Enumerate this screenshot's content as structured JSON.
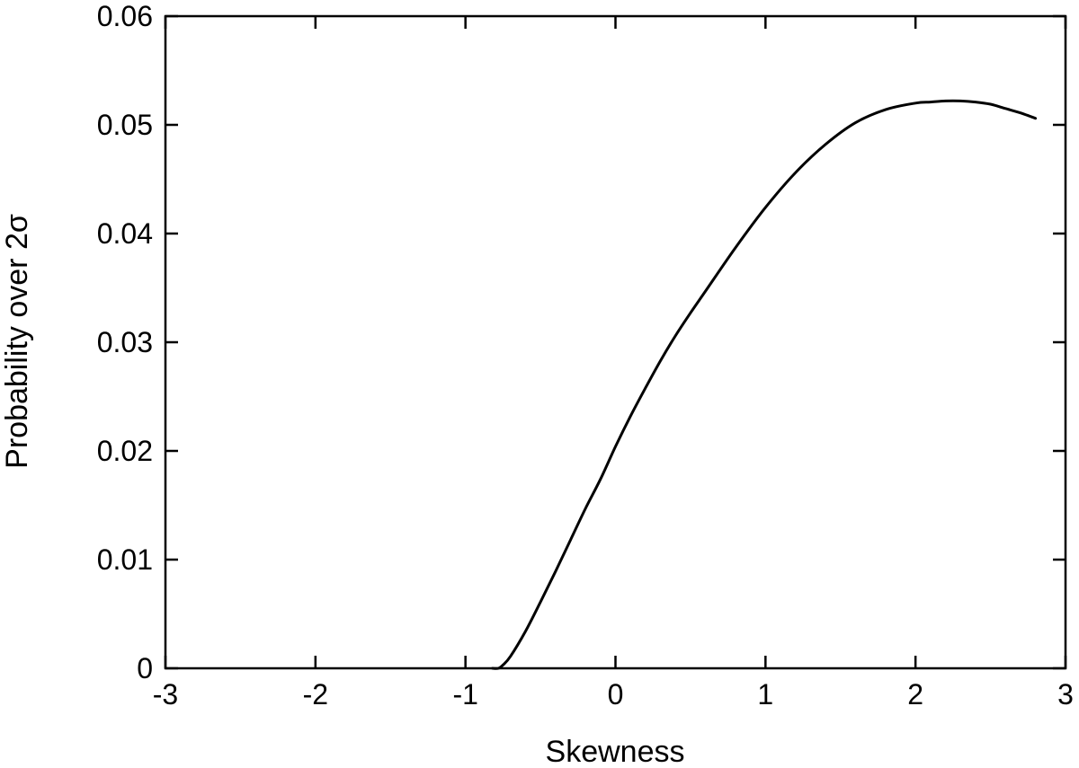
{
  "chart_data": {
    "type": "line",
    "title": "",
    "xlabel": "Skewness",
    "ylabel": "Probability over 2σ",
    "xlim": [
      -3,
      3
    ],
    "ylim": [
      0,
      0.06
    ],
    "x_ticks": [
      -3,
      -2,
      -1,
      0,
      1,
      2,
      3
    ],
    "x_tick_labels": [
      "-3",
      "-2",
      "-1",
      "0",
      "1",
      "2",
      "3"
    ],
    "y_ticks": [
      0,
      0.01,
      0.02,
      0.03,
      0.04,
      0.05,
      0.06
    ],
    "y_tick_labels": [
      "0",
      "0.01",
      "0.02",
      "0.03",
      "0.04",
      "0.05",
      "0.06"
    ],
    "grid": false,
    "legend": "none",
    "series": [
      {
        "color": "#000000",
        "x": [
          -0.82,
          -0.78,
          -0.75,
          -0.7,
          -0.6,
          -0.5,
          -0.4,
          -0.3,
          -0.2,
          -0.1,
          0.0,
          0.1,
          0.2,
          0.3,
          0.4,
          0.5,
          0.6,
          0.8,
          1.0,
          1.2,
          1.4,
          1.6,
          1.8,
          2.0,
          2.1,
          2.2,
          2.3,
          2.4,
          2.5,
          2.6,
          2.7,
          2.8
        ],
        "y": [
          0.0,
          0.0,
          0.0003,
          0.0011,
          0.0034,
          0.0061,
          0.0089,
          0.0118,
          0.0147,
          0.0174,
          0.0204,
          0.0232,
          0.0258,
          0.0283,
          0.0306,
          0.0327,
          0.0347,
          0.0387,
          0.0424,
          0.0456,
          0.0482,
          0.0502,
          0.0514,
          0.052,
          0.0521,
          0.0522,
          0.0522,
          0.0521,
          0.0519,
          0.0515,
          0.0511,
          0.0506
        ]
      }
    ]
  }
}
